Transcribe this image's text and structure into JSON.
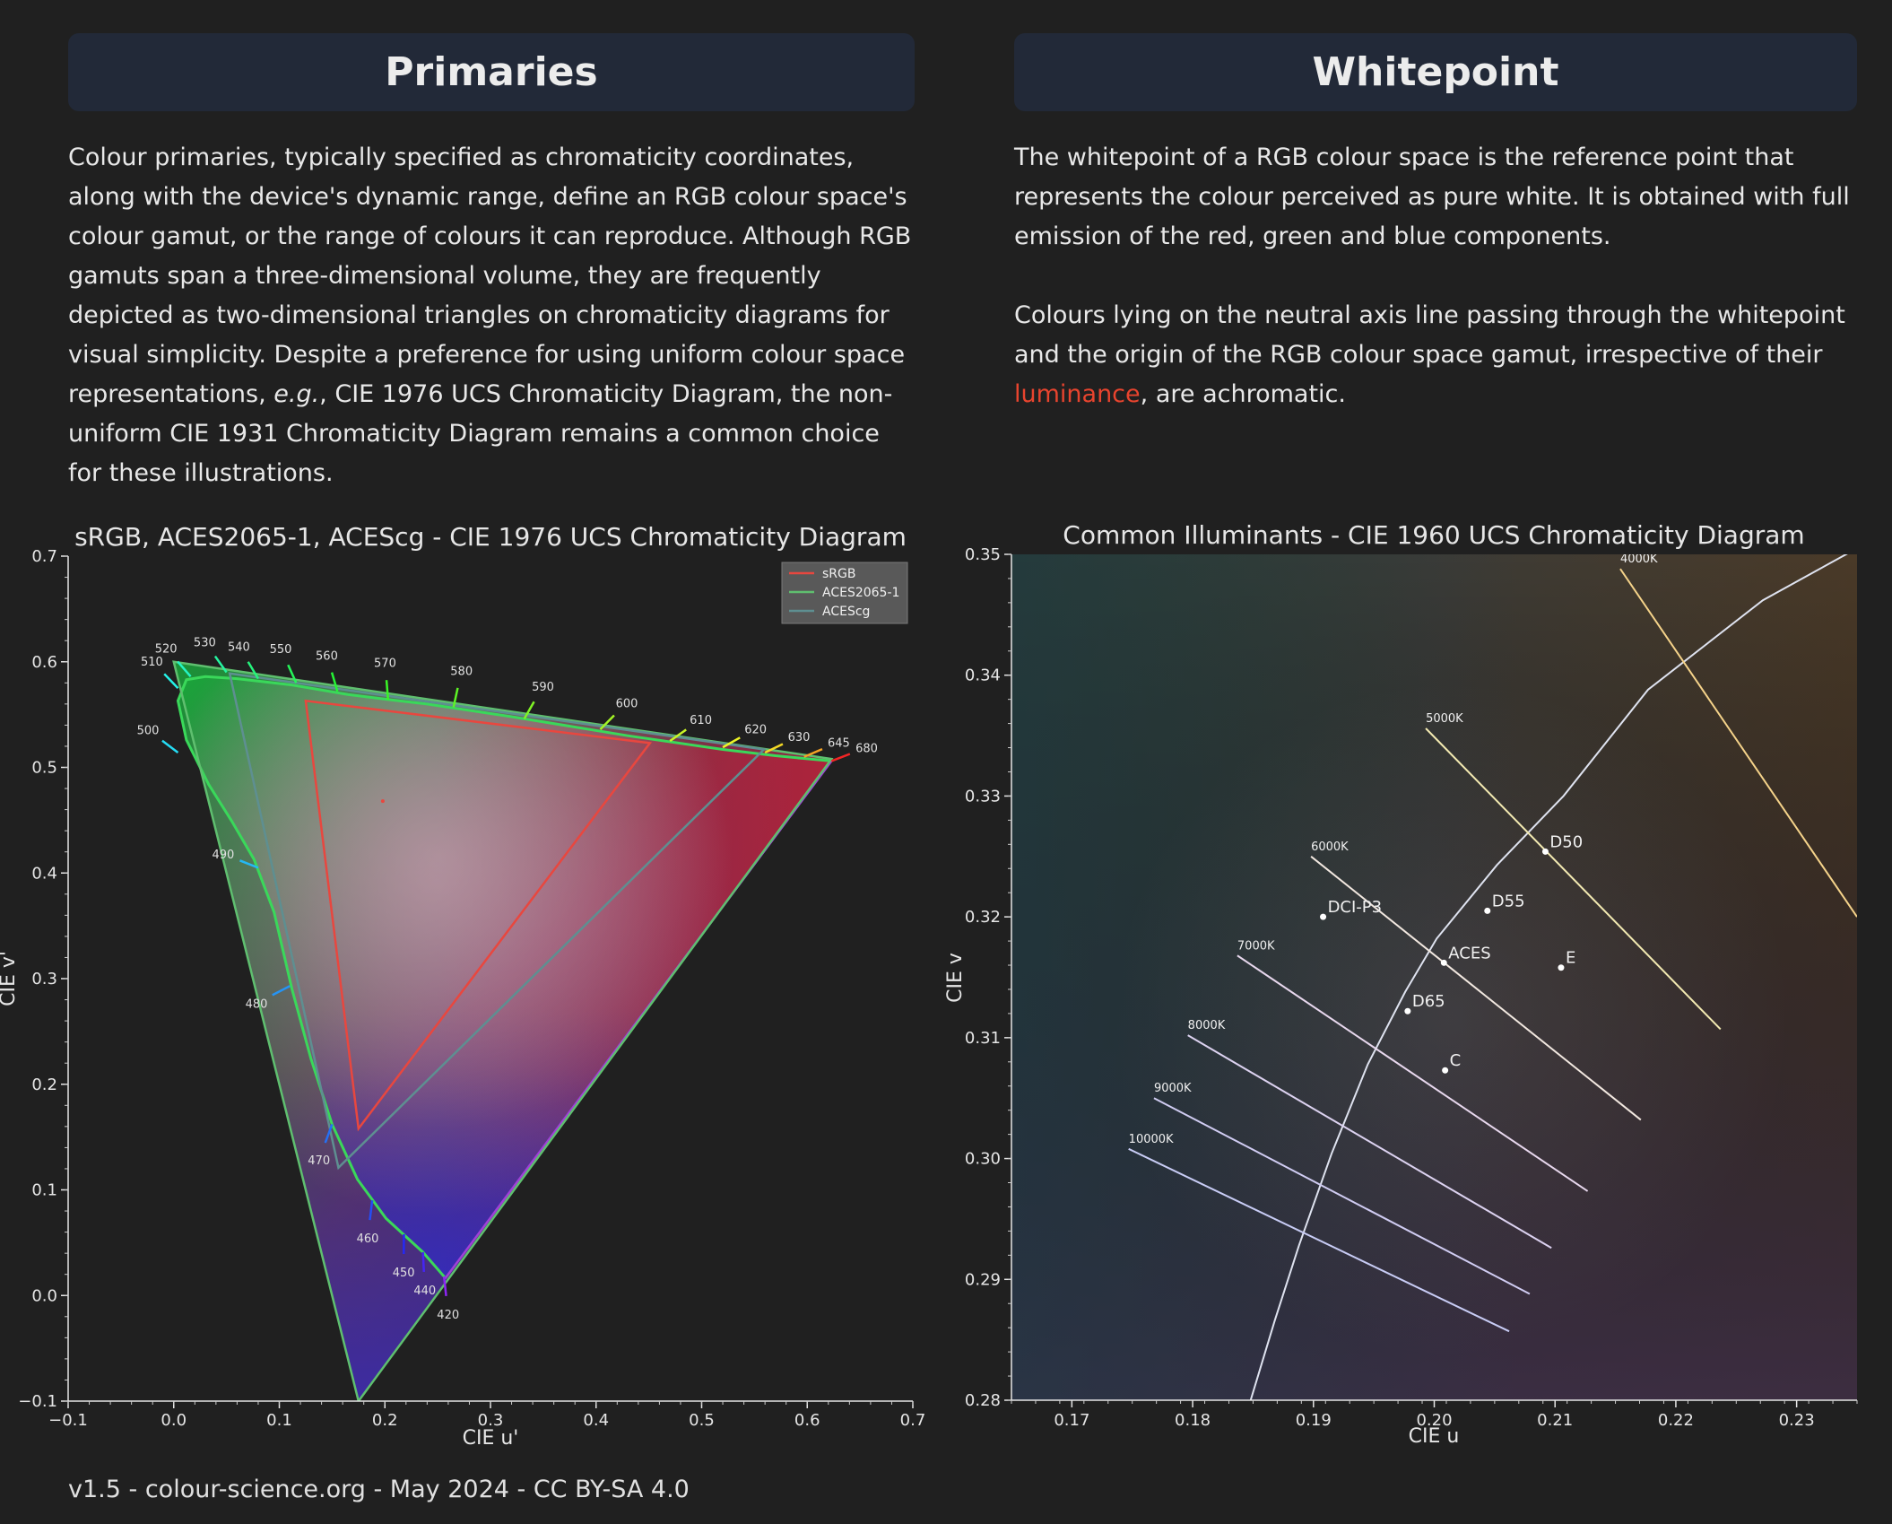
{
  "left_panel": {
    "title": "Primaries",
    "text_1": "Colour primaries, typically specified as chromaticity coordinates, along with the device's dynamic range, define an RGB colour space's colour gamut, or the range of colours it can reproduce. Although RGB gamuts span a three-dimensional volume, they are frequently depicted as two-dimensional triangles on chromaticity diagrams for visual simplicity. Despite a preference for using uniform colour space representations, ",
    "text_em": "e.g.",
    "text_2": ", CIE 1976 UCS Chromaticity Diagram, the non-uniform CIE 1931 Chromaticity Diagram remains a common choice for these illustrations."
  },
  "right_panel": {
    "title": "Whitepoint",
    "paragraph_1": "The whitepoint of a RGB colour space is the reference point that represents the colour perceived as pure white. It is obtained with full emission of the red, green and blue components.",
    "paragraph_2_before": "Colours lying on the neutral axis line passing through the whitepoint and the origin of the RGB colour space gamut, irrespective of their ",
    "paragraph_2_link": "luminance",
    "paragraph_2_after": ", are achromatic.",
    "accent_color": "#e8442e"
  },
  "footer": "v1.5 - colour-science.org - May 2024 - CC BY-SA 4.0",
  "chart_data": [
    {
      "type": "line",
      "title": "sRGB, ACES2065-1, ACEScg - CIE 1976 UCS Chromaticity Diagram",
      "xlabel": "CIE u'",
      "ylabel": "CIE v'",
      "xlim": [
        -0.1,
        0.7
      ],
      "ylim": [
        -0.1,
        0.7
      ],
      "xticks": [
        -0.1,
        0.0,
        0.1,
        0.2,
        0.3,
        0.4,
        0.5,
        0.6,
        0.7
      ],
      "yticks": [
        -0.1,
        0.0,
        0.1,
        0.2,
        0.3,
        0.4,
        0.5,
        0.6,
        0.7
      ],
      "xtick_labels": [
        "−0.1",
        "0.0",
        "0.1",
        "0.2",
        "0.3",
        "0.4",
        "0.5",
        "0.6",
        "0.7"
      ],
      "ytick_labels": [
        "−0.1",
        "0.0",
        "0.1",
        "0.2",
        "0.3",
        "0.4",
        "0.5",
        "0.6",
        "0.7"
      ],
      "legend_position": "top-right",
      "spectral_locus": [
        [
          0.257,
          0.016
        ],
        [
          0.256,
          0.018
        ],
        [
          0.236,
          0.041
        ],
        [
          0.201,
          0.073
        ],
        [
          0.174,
          0.11
        ],
        [
          0.15,
          0.162
        ],
        [
          0.13,
          0.224
        ],
        [
          0.112,
          0.29
        ],
        [
          0.095,
          0.363
        ],
        [
          0.076,
          0.413
        ],
        [
          0.055,
          0.449
        ],
        [
          0.033,
          0.484
        ],
        [
          0.012,
          0.526
        ],
        [
          0.004,
          0.563
        ],
        [
          0.012,
          0.583
        ],
        [
          0.03,
          0.586
        ],
        [
          0.06,
          0.584
        ],
        [
          0.112,
          0.578
        ],
        [
          0.165,
          0.569
        ],
        [
          0.205,
          0.564
        ],
        [
          0.24,
          0.56
        ],
        [
          0.32,
          0.548
        ],
        [
          0.43,
          0.53
        ],
        [
          0.52,
          0.517
        ],
        [
          0.57,
          0.511
        ],
        [
          0.623,
          0.506
        ]
      ],
      "wavelength_labels": [
        {
          "label": "420",
          "u": 0.256,
          "v": 0.018
        },
        {
          "label": "440",
          "u": 0.236,
          "v": 0.041
        },
        {
          "label": "450",
          "u": 0.218,
          "v": 0.058
        },
        {
          "label": "460",
          "u": 0.188,
          "v": 0.09
        },
        {
          "label": "470",
          "u": 0.15,
          "v": 0.162
        },
        {
          "label": "480",
          "u": 0.11,
          "v": 0.293
        },
        {
          "label": "490",
          "u": 0.08,
          "v": 0.405
        },
        {
          "label": "500",
          "u": 0.004,
          "v": 0.514
        },
        {
          "label": "510",
          "u": 0.004,
          "v": 0.575
        },
        {
          "label": "520",
          "u": 0.016,
          "v": 0.586
        },
        {
          "label": "530",
          "u": 0.05,
          "v": 0.59
        },
        {
          "label": "540",
          "u": 0.08,
          "v": 0.584
        },
        {
          "label": "550",
          "u": 0.116,
          "v": 0.58
        },
        {
          "label": "560",
          "u": 0.155,
          "v": 0.572
        },
        {
          "label": "570",
          "u": 0.203,
          "v": 0.564
        },
        {
          "label": "580",
          "u": 0.265,
          "v": 0.557
        },
        {
          "label": "590",
          "u": 0.332,
          "v": 0.546
        },
        {
          "label": "600",
          "u": 0.404,
          "v": 0.536
        },
        {
          "label": "610",
          "u": 0.47,
          "v": 0.525
        },
        {
          "label": "620",
          "u": 0.52,
          "v": 0.519
        },
        {
          "label": "630",
          "u": 0.56,
          "v": 0.514
        },
        {
          "label": "645",
          "u": 0.597,
          "v": 0.51
        },
        {
          "label": "680",
          "u": 0.623,
          "v": 0.506
        }
      ],
      "series": [
        {
          "name": "sRGB",
          "color": "#e8473f",
          "points": [
            [
              0.451,
              0.523
            ],
            [
              0.125,
              0.563
            ],
            [
              0.175,
              0.158
            ]
          ]
        },
        {
          "name": "ACES2065-1",
          "color": "#5fbf6f",
          "points": [
            [
              0.623,
              0.508
            ],
            [
              0.0,
              0.6
            ],
            [
              0.175,
              -0.1
            ]
          ]
        },
        {
          "name": "ACEScg",
          "color": "#5e8f91",
          "points": [
            [
              0.559,
              0.517
            ],
            [
              0.053,
              0.589
            ],
            [
              0.156,
              0.121
            ]
          ]
        }
      ],
      "whitepoint_marker": [
        0.198,
        0.468
      ]
    },
    {
      "type": "scatter",
      "title": "Common Illuminants - CIE 1960 UCS Chromaticity Diagram",
      "xlabel": "CIE u",
      "ylabel": "CIE v",
      "xlim": [
        0.165,
        0.235
      ],
      "ylim": [
        0.28,
        0.35
      ],
      "xticks": [
        0.17,
        0.18,
        0.19,
        0.2,
        0.21,
        0.22,
        0.23
      ],
      "yticks": [
        0.28,
        0.29,
        0.3,
        0.31,
        0.32,
        0.33,
        0.34,
        0.35
      ],
      "xtick_labels": [
        "0.17",
        "0.18",
        "0.19",
        "0.20",
        "0.21",
        "0.22",
        "0.23"
      ],
      "ytick_labels": [
        "0.28",
        "0.29",
        "0.30",
        "0.31",
        "0.32",
        "0.33",
        "0.34",
        "0.35"
      ],
      "illuminants": [
        {
          "name": "D50",
          "u": 0.2092,
          "v": 0.3254
        },
        {
          "name": "D55",
          "u": 0.2044,
          "v": 0.3205
        },
        {
          "name": "DCI-P3",
          "u": 0.1908,
          "v": 0.32
        },
        {
          "name": "ACES",
          "u": 0.2008,
          "v": 0.3162
        },
        {
          "name": "E",
          "u": 0.2105,
          "v": 0.3158
        },
        {
          "name": "D65",
          "u": 0.1978,
          "v": 0.3122
        },
        {
          "name": "C",
          "u": 0.2009,
          "v": 0.3073
        }
      ],
      "planckian_locus": [
        [
          0.1848,
          0.28
        ],
        [
          0.1868,
          0.2866
        ],
        [
          0.1888,
          0.2928
        ],
        [
          0.1915,
          0.3004
        ],
        [
          0.1945,
          0.3078
        ],
        [
          0.1976,
          0.3138
        ],
        [
          0.2002,
          0.3182
        ],
        [
          0.2052,
          0.3243
        ],
        [
          0.2107,
          0.33
        ],
        [
          0.2177,
          0.3388
        ],
        [
          0.2272,
          0.3462
        ],
        [
          0.235,
          0.3505
        ]
      ],
      "isotemperature_lines": [
        {
          "label": "4000K",
          "start": [
            0.2154,
            0.3488
          ],
          "end": [
            0.235,
            0.32
          ]
        },
        {
          "label": "5000K",
          "start": [
            0.1993,
            0.3356
          ],
          "end": [
            0.2237,
            0.3107
          ]
        },
        {
          "label": "6000K",
          "start": [
            0.1898,
            0.325
          ],
          "end": [
            0.2171,
            0.3032
          ]
        },
        {
          "label": "7000K",
          "start": [
            0.1837,
            0.3168
          ],
          "end": [
            0.2127,
            0.2973
          ]
        },
        {
          "label": "8000K",
          "start": [
            0.1796,
            0.3102
          ],
          "end": [
            0.2097,
            0.2926
          ]
        },
        {
          "label": "9000K",
          "start": [
            0.1768,
            0.305
          ],
          "end": [
            0.2079,
            0.2888
          ]
        },
        {
          "label": "10000K",
          "start": [
            0.1747,
            0.3008
          ],
          "end": [
            0.2062,
            0.2857
          ]
        }
      ]
    }
  ]
}
